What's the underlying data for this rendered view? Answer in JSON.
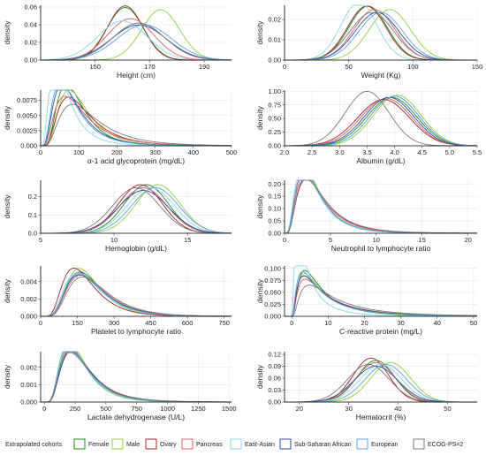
{
  "legend": {
    "title": "Extrapolated cohorts",
    "items": [
      {
        "label": "Female",
        "color": "#1f8a1f"
      },
      {
        "label": "Male",
        "color": "#8fd13f"
      },
      {
        "label": "Ovary",
        "color": "#a32424"
      },
      {
        "label": "Pancreas",
        "color": "#e06060"
      },
      {
        "label": "East-Asian",
        "color": "#8ad8e6"
      },
      {
        "label": "Sub-Saharan African",
        "color": "#2a4fa8"
      },
      {
        "label": "European",
        "color": "#5aa6dd"
      },
      {
        "label": "ECOG-PS=2",
        "color": "#7a7a7a"
      }
    ]
  },
  "chart_data": [
    {
      "type": "line",
      "xlabel": "Height (cm)",
      "ylabel": "density",
      "xlim": [
        130,
        200
      ],
      "ylim": [
        0,
        0.062
      ],
      "xticks": [
        150,
        170,
        190
      ],
      "yticks": [
        0,
        0.02,
        0.04,
        0.06
      ],
      "yticklabels": [
        "0.00",
        "0.02",
        "0.04",
        "0.06"
      ],
      "series": [
        {
          "name": "Female",
          "mu": 161,
          "sd": 6.7
        },
        {
          "name": "Male",
          "mu": 174,
          "sd": 7
        },
        {
          "name": "Ovary",
          "mu": 161,
          "sd": 6.5
        },
        {
          "name": "Pancreas",
          "mu": 163,
          "sd": 8.5
        },
        {
          "name": "East-Asian",
          "mu": 160,
          "sd": 9
        },
        {
          "name": "Sub-Saharan African",
          "mu": 166,
          "sd": 10
        },
        {
          "name": "European",
          "mu": 168,
          "sd": 10
        },
        {
          "name": "ECOG-PS=2",
          "mu": 166,
          "sd": 9.5
        }
      ]
    },
    {
      "type": "line",
      "xlabel": "Weight (Kg)",
      "ylabel": "density",
      "xlim": [
        0,
        150
      ],
      "ylim": [
        0,
        0.027
      ],
      "xticks": [
        0,
        50,
        100,
        150
      ],
      "yticks": [
        0,
        0.01,
        0.02
      ],
      "yticklabels": [
        "0.00",
        "0.01",
        "0.02"
      ],
      "series": [
        {
          "name": "Female",
          "mu": 65,
          "sd": 15
        },
        {
          "name": "Male",
          "mu": 82,
          "sd": 16
        },
        {
          "name": "Ovary",
          "mu": 64,
          "sd": 15
        },
        {
          "name": "Pancreas",
          "mu": 70,
          "sd": 16
        },
        {
          "name": "East-Asian",
          "mu": 58,
          "sd": 14
        },
        {
          "name": "Sub-Saharan African",
          "mu": 72,
          "sd": 17
        },
        {
          "name": "European",
          "mu": 75,
          "sd": 17
        },
        {
          "name": "ECOG-PS=2",
          "mu": 68,
          "sd": 17
        }
      ]
    },
    {
      "type": "line",
      "xlabel": "α-1 acid glycoprotein (mg/dL)",
      "ylabel": "density",
      "xlim": [
        0,
        500
      ],
      "ylim": [
        0,
        0.0092
      ],
      "xticks": [
        0,
        100,
        200,
        300,
        400,
        500
      ],
      "yticks": [
        0,
        0.0025,
        0.005,
        0.0075
      ],
      "yticklabels": [
        "0.000",
        "0.0025",
        "0.0050",
        "0.0075"
      ],
      "series": [
        {
          "name": "Female",
          "mu": 100,
          "sd": 55,
          "dist": "lognorm"
        },
        {
          "name": "Male",
          "mu": 110,
          "sd": 60,
          "dist": "lognorm"
        },
        {
          "name": "Ovary",
          "mu": 120,
          "sd": 75,
          "dist": "lognorm"
        },
        {
          "name": "Pancreas",
          "mu": 115,
          "sd": 80,
          "dist": "lognorm"
        },
        {
          "name": "East-Asian",
          "mu": 70,
          "sd": 48,
          "dist": "lognorm"
        },
        {
          "name": "Sub-Saharan African",
          "mu": 95,
          "sd": 62,
          "dist": "lognorm"
        },
        {
          "name": "European",
          "mu": 90,
          "sd": 60,
          "dist": "lognorm"
        },
        {
          "name": "ECOG-PS=2",
          "mu": 140,
          "sd": 90,
          "dist": "lognorm"
        }
      ]
    },
    {
      "type": "line",
      "xlabel": "Albumin (g/dL)",
      "ylabel": "density",
      "xlim": [
        2.0,
        5.5
      ],
      "ylim": [
        0,
        1.02
      ],
      "xticks": [
        2.0,
        2.5,
        3.0,
        3.5,
        4.0,
        4.5,
        5.0,
        5.5
      ],
      "yticks": [
        0,
        0.25,
        0.5,
        0.75,
        1.0
      ],
      "xticklabels": [
        "2.0",
        "2.5",
        "3.0",
        "3.5",
        "4.0",
        "4.5",
        "5.0",
        "5.5"
      ],
      "yticklabels": [
        "0.00",
        "0.25",
        "0.50",
        "0.75",
        "1.00"
      ],
      "series": [
        {
          "name": "Female",
          "mu": 3.95,
          "sd": 0.45
        },
        {
          "name": "Male",
          "mu": 4.05,
          "sd": 0.43
        },
        {
          "name": "Ovary",
          "mu": 3.8,
          "sd": 0.47
        },
        {
          "name": "Pancreas",
          "mu": 3.85,
          "sd": 0.46
        },
        {
          "name": "East-Asian",
          "mu": 4.0,
          "sd": 0.44
        },
        {
          "name": "Sub-Saharan African",
          "mu": 3.9,
          "sd": 0.45
        },
        {
          "name": "European",
          "mu": 4.0,
          "sd": 0.44
        },
        {
          "name": "ECOG-PS=2",
          "mu": 3.5,
          "sd": 0.4
        }
      ]
    },
    {
      "type": "line",
      "xlabel": "Hemoglobin (g/dL)",
      "ylabel": "density",
      "xlim": [
        5,
        18
      ],
      "ylim": [
        0,
        0.29
      ],
      "xticks": [
        5,
        10,
        15
      ],
      "yticks": [
        0,
        0.1,
        0.2
      ],
      "yticklabels": [
        "0.0",
        "0.1",
        "0.2"
      ],
      "series": [
        {
          "name": "Female",
          "mu": 12.2,
          "sd": 1.5
        },
        {
          "name": "Male",
          "mu": 13,
          "sd": 1.5
        },
        {
          "name": "Ovary",
          "mu": 11.8,
          "sd": 1.5
        },
        {
          "name": "Pancreas",
          "mu": 12,
          "sd": 1.6
        },
        {
          "name": "East-Asian",
          "mu": 12.5,
          "sd": 1.6
        },
        {
          "name": "Sub-Saharan African",
          "mu": 12,
          "sd": 1.7
        },
        {
          "name": "European",
          "mu": 12.8,
          "sd": 1.6
        },
        {
          "name": "ECOG-PS=2",
          "mu": 11.5,
          "sd": 1.6
        }
      ]
    },
    {
      "type": "line",
      "xlabel": "Neutrophil to lymphocyte ratio",
      "ylabel": "density",
      "xlim": [
        0,
        21
      ],
      "ylim": [
        0,
        0.215
      ],
      "xticks": [
        0,
        5,
        10,
        15,
        20
      ],
      "yticks": [
        0,
        0.05,
        0.1,
        0.15,
        0.2
      ],
      "yticklabels": [
        "0.00",
        "0.05",
        "0.10",
        "0.15",
        "0.20"
      ],
      "series": [
        {
          "name": "Female",
          "mu": 3.6,
          "sd": 2.3,
          "dist": "lognorm"
        },
        {
          "name": "Male",
          "mu": 3.6,
          "sd": 2.3,
          "dist": "lognorm"
        },
        {
          "name": "Ovary",
          "mu": 4.2,
          "sd": 2.9,
          "dist": "lognorm"
        },
        {
          "name": "Pancreas",
          "mu": 4.0,
          "sd": 2.8,
          "dist": "lognorm"
        },
        {
          "name": "East-Asian",
          "mu": 3.5,
          "sd": 2.4,
          "dist": "lognorm"
        },
        {
          "name": "Sub-Saharan African",
          "mu": 3.7,
          "sd": 2.5,
          "dist": "lognorm"
        },
        {
          "name": "European",
          "mu": 3.7,
          "sd": 2.5,
          "dist": "lognorm"
        },
        {
          "name": "ECOG-PS=2",
          "mu": 4.3,
          "sd": 3.0,
          "dist": "lognorm"
        }
      ]
    },
    {
      "type": "line",
      "xlabel": "Platelet to lymphocyte ratio",
      "ylabel": "density",
      "xlim": [
        0,
        780
      ],
      "ylim": [
        0,
        0.0058
      ],
      "xticks": [
        0,
        150,
        300,
        450,
        600,
        750
      ],
      "yticks": [
        0,
        0.002,
        0.004
      ],
      "yticklabels": [
        "0.000",
        "0.002",
        "0.004"
      ],
      "series": [
        {
          "name": "Female",
          "mu": 215,
          "sd": 100,
          "dist": "lognorm"
        },
        {
          "name": "Male",
          "mu": 205,
          "sd": 90,
          "dist": "lognorm"
        },
        {
          "name": "Ovary",
          "mu": 190,
          "sd": 95,
          "dist": "lognorm"
        },
        {
          "name": "Pancreas",
          "mu": 225,
          "sd": 110,
          "dist": "lognorm"
        },
        {
          "name": "East-Asian",
          "mu": 210,
          "sd": 105,
          "dist": "lognorm"
        },
        {
          "name": "Sub-Saharan African",
          "mu": 220,
          "sd": 110,
          "dist": "lognorm"
        },
        {
          "name": "European",
          "mu": 215,
          "sd": 105,
          "dist": "lognorm"
        },
        {
          "name": "ECOG-PS=2",
          "mu": 235,
          "sd": 115,
          "dist": "lognorm"
        }
      ]
    },
    {
      "type": "line",
      "xlabel": "C-reactive protein (mg/L)",
      "ylabel": "density",
      "xlim": [
        -2,
        51
      ],
      "ylim": [
        0,
        0.105
      ],
      "xticks": [
        0,
        10,
        20,
        30,
        40,
        50
      ],
      "yticks": [
        0,
        0.025,
        0.05,
        0.075,
        0.1
      ],
      "yticklabels": [
        "0.000",
        "0.025",
        "0.050",
        "0.075",
        "0.100"
      ],
      "series": [
        {
          "name": "Female",
          "mu": 10,
          "sd": 10,
          "dist": "lognorm"
        },
        {
          "name": "Male",
          "mu": 11,
          "sd": 12,
          "dist": "lognorm"
        },
        {
          "name": "Ovary",
          "mu": 12,
          "sd": 14,
          "dist": "lognorm"
        },
        {
          "name": "Pancreas",
          "mu": 13,
          "sd": 15,
          "dist": "lognorm"
        },
        {
          "name": "East-Asian",
          "mu": 6,
          "sd": 7,
          "dist": "lognorm"
        },
        {
          "name": "Sub-Saharan African",
          "mu": 12,
          "sd": 14,
          "dist": "lognorm"
        },
        {
          "name": "European",
          "mu": 11,
          "sd": 13,
          "dist": "lognorm"
        },
        {
          "name": "ECOG-PS=2",
          "mu": 15,
          "sd": 16,
          "dist": "lognorm"
        }
      ]
    },
    {
      "type": "line",
      "xlabel": "Lactate dehydrogenase (U/L)",
      "ylabel": "density",
      "xlim": [
        -30,
        1520
      ],
      "ylim": [
        0,
        0.0029
      ],
      "xticks": [
        0,
        250,
        500,
        750,
        1000,
        1250,
        1500
      ],
      "yticks": [
        0,
        0.001,
        0.002
      ],
      "yticklabels": [
        "0.000",
        "0.001",
        "0.002"
      ],
      "series": [
        {
          "name": "Female",
          "mu": 300,
          "sd": 170,
          "dist": "lognorm"
        },
        {
          "name": "Male",
          "mu": 300,
          "sd": 160,
          "dist": "lognorm"
        },
        {
          "name": "Ovary",
          "mu": 330,
          "sd": 190,
          "dist": "lognorm"
        },
        {
          "name": "Pancreas",
          "mu": 320,
          "sd": 185,
          "dist": "lognorm"
        },
        {
          "name": "East-Asian",
          "mu": 305,
          "sd": 175,
          "dist": "lognorm"
        },
        {
          "name": "Sub-Saharan African",
          "mu": 340,
          "sd": 200,
          "dist": "lognorm"
        },
        {
          "name": "European",
          "mu": 315,
          "sd": 180,
          "dist": "lognorm"
        },
        {
          "name": "ECOG-PS=2",
          "mu": 340,
          "sd": 210,
          "dist": "lognorm"
        }
      ]
    },
    {
      "type": "line",
      "xlabel": "Hematocrit (%)",
      "ylabel": "density",
      "xlim": [
        17,
        56
      ],
      "ylim": [
        0,
        0.127
      ],
      "xticks": [
        20,
        30,
        40,
        50
      ],
      "yticks": [
        0,
        0.03,
        0.06,
        0.09,
        0.12
      ],
      "yticklabels": [
        "0.00",
        "0.03",
        "0.06",
        "0.09",
        "0.12"
      ],
      "series": [
        {
          "name": "Female",
          "mu": 35.5,
          "sd": 3.8
        },
        {
          "name": "Male",
          "mu": 38.5,
          "sd": 4.0
        },
        {
          "name": "Ovary",
          "mu": 34.5,
          "sd": 3.6
        },
        {
          "name": "Pancreas",
          "mu": 35.5,
          "sd": 4.0
        },
        {
          "name": "East-Asian",
          "mu": 36.5,
          "sd": 4.2
        },
        {
          "name": "Sub-Saharan African",
          "mu": 35.5,
          "sd": 4.4
        },
        {
          "name": "European",
          "mu": 37.5,
          "sd": 4.2
        },
        {
          "name": "ECOG-PS=2",
          "mu": 34,
          "sd": 4.2
        }
      ]
    }
  ]
}
